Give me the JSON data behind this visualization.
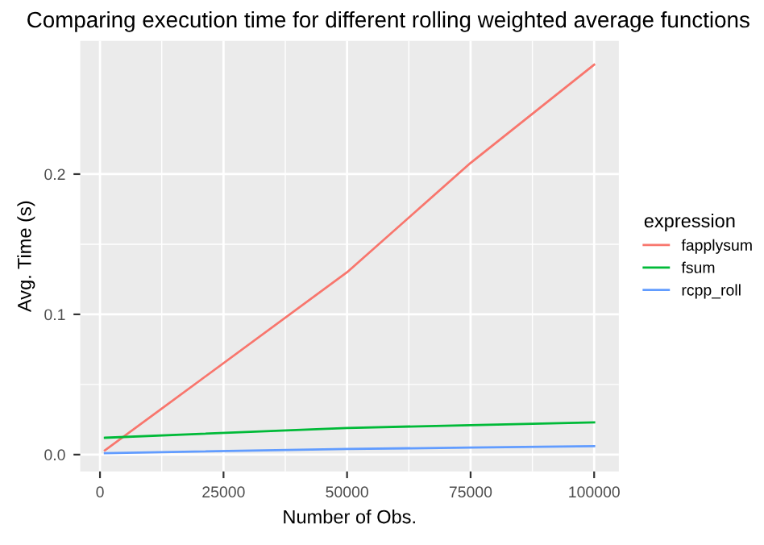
{
  "chart_data": {
    "type": "line",
    "title": "Comparing execution time for different rolling weighted average functions",
    "xlabel": "Number of Obs.",
    "ylabel": "Avg. Time (s)",
    "legend_title": "expression",
    "x": [
      1000,
      50000,
      75000,
      100000
    ],
    "series": [
      {
        "name": "fapplysum",
        "color": "#f8766d",
        "values": [
          0.003,
          0.13,
          0.208,
          0.278
        ]
      },
      {
        "name": "fsum",
        "color": "#00ba38",
        "values": [
          0.012,
          0.019,
          0.021,
          0.023
        ]
      },
      {
        "name": "rcpp_roll",
        "color": "#619cff",
        "values": [
          0.001,
          0.004,
          0.005,
          0.006
        ]
      }
    ],
    "xlim": [
      -4000,
      105000
    ],
    "xticks": [
      0,
      25000,
      50000,
      75000,
      100000
    ],
    "ylim": [
      -0.012,
      0.295
    ],
    "yticks": [
      {
        "value": 0,
        "label": "0.0"
      },
      0.1,
      0.2
    ],
    "grid": true,
    "legend": "right",
    "line_style": "solid",
    "marker": "none"
  }
}
